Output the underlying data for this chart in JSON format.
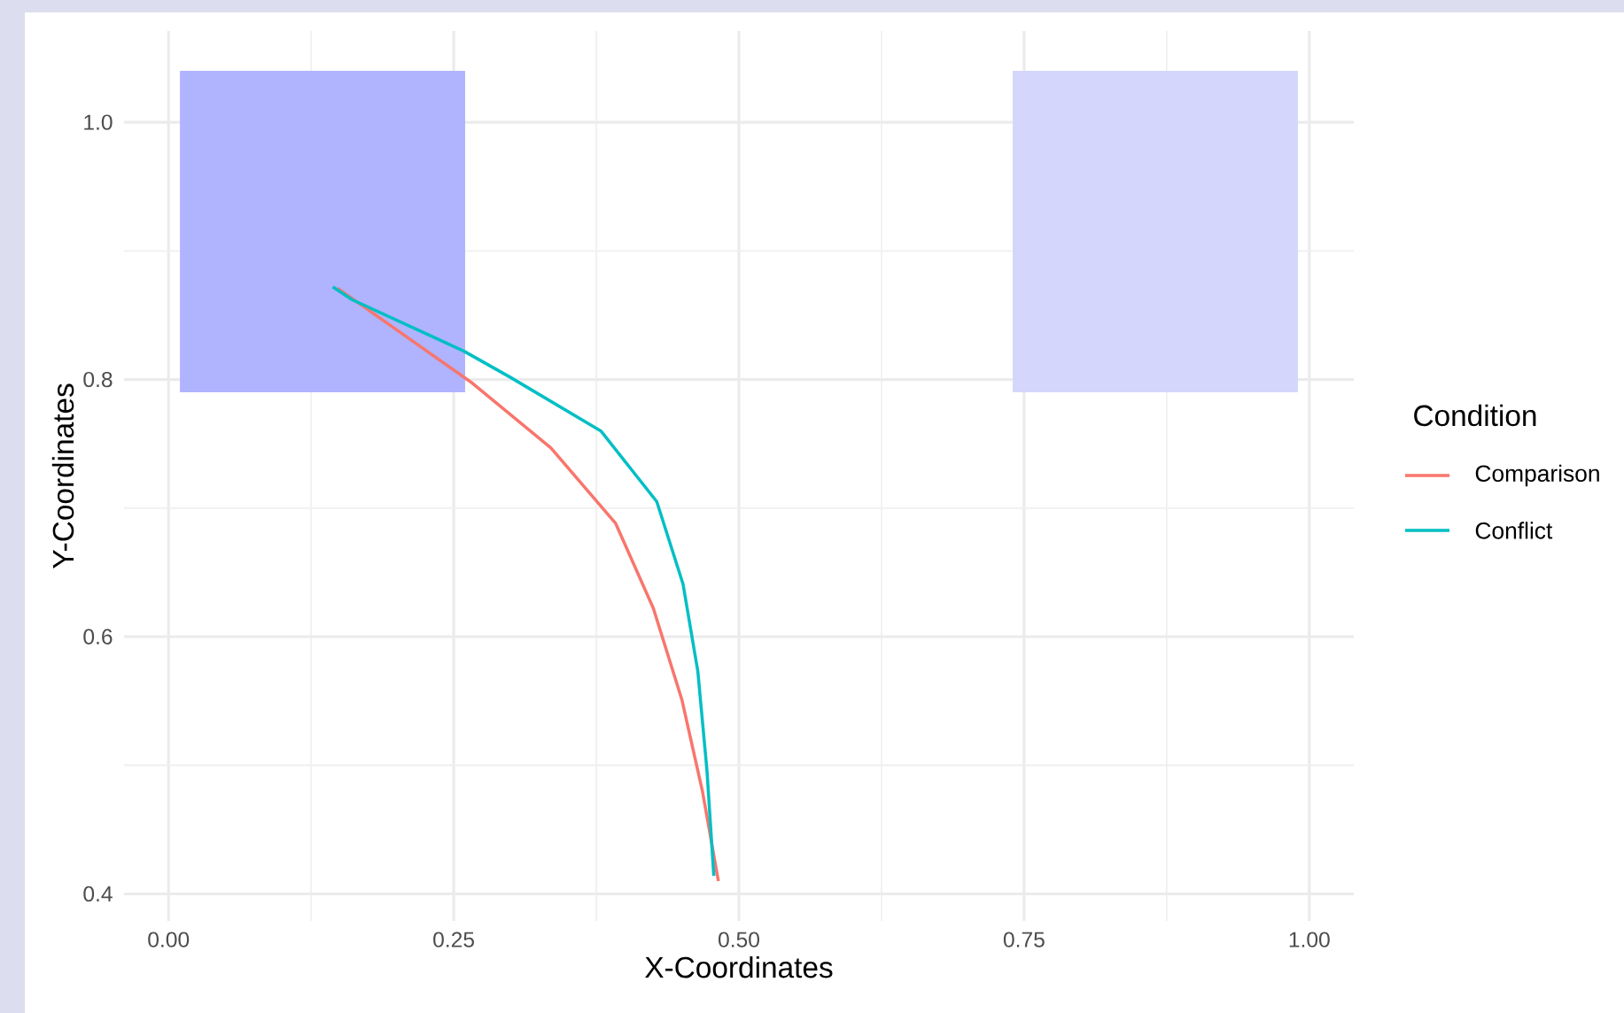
{
  "chart_data": {
    "type": "line",
    "xlabel": "X-Coordinates",
    "ylabel": "Y-Coordinates",
    "legend_title": "Condition",
    "series": [
      {
        "name": "Comparison",
        "color": "#f8766d",
        "x": [
          0.148,
          0.265,
          0.335,
          0.392,
          0.425,
          0.45,
          0.468,
          0.482
        ],
        "values": [
          0.871,
          0.798,
          0.747,
          0.688,
          0.622,
          0.551,
          0.48,
          0.41
        ]
      },
      {
        "name": "Conflict",
        "color": "#00bfc4",
        "x": [
          0.144,
          0.161,
          0.259,
          0.299,
          0.379,
          0.428,
          0.451,
          0.464,
          0.472,
          0.478
        ],
        "values": [
          0.872,
          0.862,
          0.822,
          0.802,
          0.76,
          0.705,
          0.641,
          0.573,
          0.496,
          0.414
        ]
      }
    ],
    "xlim": [
      -0.039,
      1.039
    ],
    "ylim": [
      0.379,
      1.071
    ],
    "xticks": [
      {
        "value": 0,
        "label": "0.00"
      },
      {
        "value": 0.25,
        "label": "0.25"
      },
      {
        "value": 0.5,
        "label": "0.50"
      },
      {
        "value": 0.75,
        "label": "0.75"
      },
      {
        "value": 1,
        "label": "1.00"
      }
    ],
    "yticks": [
      {
        "value": 0.4,
        "label": "0.4"
      },
      {
        "value": 0.6,
        "label": "0.6"
      },
      {
        "value": 0.8,
        "label": "0.8"
      },
      {
        "value": 1,
        "label": "1.0"
      }
    ],
    "grid": true,
    "legend": "right",
    "line_style": "solid",
    "marker": "none"
  }
}
